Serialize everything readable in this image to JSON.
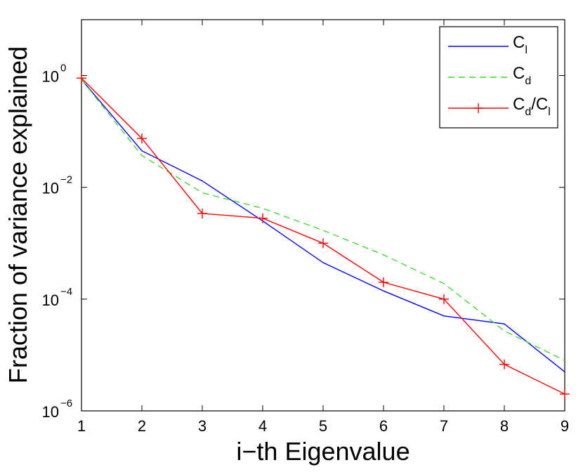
{
  "chart_data": {
    "type": "line",
    "title": "",
    "xlabel": "i−th Eigenvalue",
    "ylabel": "Fraction of variance explained",
    "x": [
      1,
      2,
      3,
      4,
      5,
      6,
      7,
      8,
      9
    ],
    "xlim": [
      1,
      9
    ],
    "ylim": [
      1e-06,
      10
    ],
    "yscale": "log",
    "grid": false,
    "legend_position": "top-right",
    "xticks": [
      "1",
      "2",
      "3",
      "4",
      "5",
      "6",
      "7",
      "8",
      "9"
    ],
    "yticks": [
      {
        "value": 1e-06,
        "base": "10",
        "exp": "−6"
      },
      {
        "value": 0.0001,
        "base": "10",
        "exp": "−4"
      },
      {
        "value": 0.01,
        "base": "10",
        "exp": "−2"
      },
      {
        "value": 1,
        "base": "10",
        "exp": "0"
      }
    ],
    "series": [
      {
        "name": "Cl",
        "legend_main": "C",
        "legend_sub": "l",
        "color": "#0000ff",
        "style": "solid",
        "marker": "none",
        "values": [
          0.85,
          0.045,
          0.013,
          0.0025,
          0.00045,
          0.00014,
          5e-05,
          3.6e-05,
          5e-06
        ]
      },
      {
        "name": "Cd",
        "legend_main": "C",
        "legend_sub": "d",
        "color": "#33dd22",
        "style": "dashed",
        "marker": "none",
        "values": [
          0.85,
          0.037,
          0.008,
          0.0042,
          0.0017,
          0.00062,
          0.00019,
          2.7e-05,
          8e-06
        ]
      },
      {
        "name": "Cd/Cl",
        "legend_main": "C",
        "legend_sub": "d",
        "legend_main2": "/C",
        "legend_sub2": "l",
        "color": "#ff0000",
        "style": "solid",
        "marker": "plus",
        "values": [
          0.9,
          0.075,
          0.0034,
          0.0028,
          0.001,
          0.0002,
          0.0001,
          6.8e-06,
          2e-06
        ]
      }
    ]
  }
}
